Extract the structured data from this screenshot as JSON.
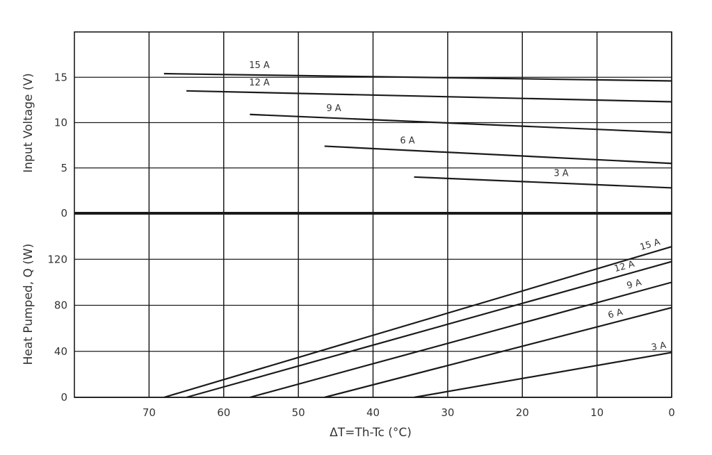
{
  "chart_data": [
    {
      "type": "line",
      "panel": "voltage",
      "ylabel": "Input Voltage (V)",
      "xlabel": "ΔT=Th-Tc (°C)",
      "xlim": [
        80,
        0
      ],
      "ylim": [
        0,
        20
      ],
      "yticks": [
        0,
        5,
        10,
        15
      ],
      "grid": true,
      "series": [
        {
          "name": "15 A",
          "x": [
            68,
            0
          ],
          "y": [
            15.4,
            14.6
          ]
        },
        {
          "name": "12 A",
          "x": [
            65,
            0
          ],
          "y": [
            13.5,
            12.3
          ]
        },
        {
          "name": "9 A",
          "x": [
            56.5,
            0
          ],
          "y": [
            10.9,
            8.9
          ]
        },
        {
          "name": "6 A",
          "x": [
            46.5,
            0
          ],
          "y": [
            7.4,
            5.5
          ]
        },
        {
          "name": "3 A",
          "x": [
            34.5,
            0
          ],
          "y": [
            4.0,
            2.8
          ]
        }
      ]
    },
    {
      "type": "line",
      "panel": "heat",
      "ylabel": "Heat Pumped, Q (W)",
      "xlabel": "ΔT=Th-Tc (°C)",
      "xlim": [
        80,
        0
      ],
      "ylim": [
        0,
        160
      ],
      "yticks": [
        0,
        40,
        80,
        120
      ],
      "grid": true,
      "series": [
        {
          "name": "15 A",
          "x": [
            68,
            0
          ],
          "y": [
            0,
            131
          ]
        },
        {
          "name": "12 A",
          "x": [
            65,
            0
          ],
          "y": [
            0,
            118
          ]
        },
        {
          "name": "9 A",
          "x": [
            56.5,
            0
          ],
          "y": [
            0,
            100
          ]
        },
        {
          "name": "6 A",
          "x": [
            46.5,
            0
          ],
          "y": [
            0,
            78
          ]
        },
        {
          "name": "3 A",
          "x": [
            34.5,
            0
          ],
          "y": [
            0,
            39
          ]
        }
      ]
    }
  ],
  "x_axis": {
    "title": "ΔT=Th-Tc (°C)",
    "ticks": [
      70,
      60,
      50,
      40,
      30,
      20,
      10,
      0
    ]
  },
  "colors": {
    "line": "#1a1a1a",
    "grid": "#1a1a1a",
    "text": "#333333"
  }
}
